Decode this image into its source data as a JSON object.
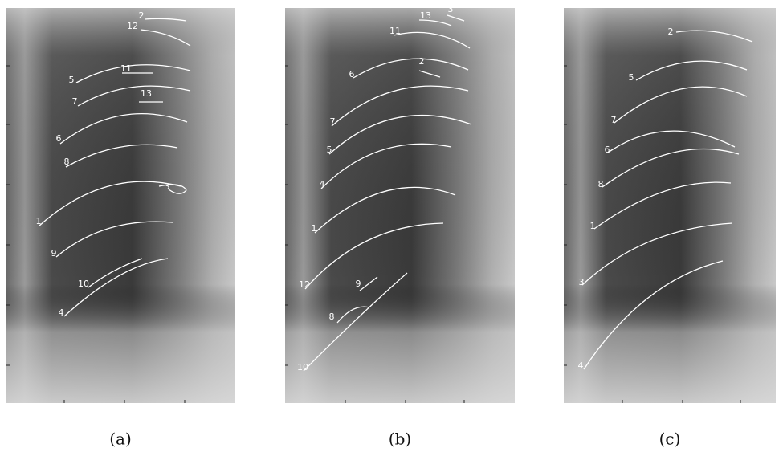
{
  "panels": [
    {
      "caption": "(a)",
      "labels": [
        "2",
        "12",
        "11",
        "5",
        "13",
        "7",
        "6",
        "8",
        "3",
        "1",
        "9",
        "10",
        "4"
      ]
    },
    {
      "caption": "(b)",
      "labels": [
        "13",
        "3",
        "11",
        "6",
        "2",
        "7",
        "5",
        "4",
        "1",
        "12",
        "9",
        "8",
        "10"
      ]
    },
    {
      "caption": "(c)",
      "labels": [
        "2",
        "5",
        "7",
        "6",
        "8",
        "1",
        "3",
        "4"
      ]
    }
  ]
}
